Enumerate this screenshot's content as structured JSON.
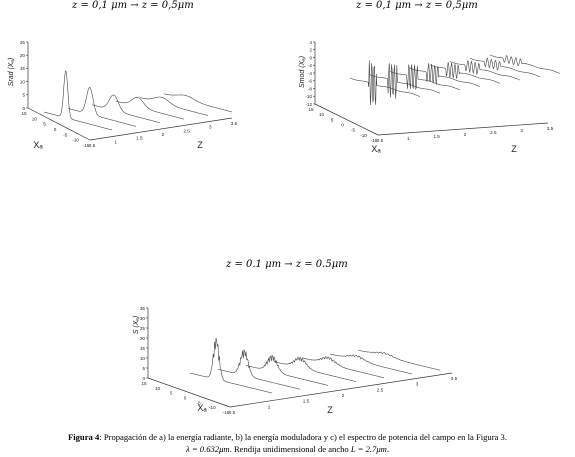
{
  "figures": [
    {
      "id": "a",
      "title": "z = 0,1 μm → z = 0,5μm",
      "ylabel": "Srad (Xₐ)",
      "xlabel": "Xₐ",
      "zlabel": "Z",
      "yticks": [
        "25",
        "20",
        "15",
        "10",
        "5",
        "0"
      ],
      "xticks": [
        "15",
        "10",
        "5",
        "0",
        "-5",
        "-10",
        "-15"
      ],
      "zticks": [
        "0.5",
        "1",
        "1.5",
        "2",
        "2.5",
        "3",
        "3.5"
      ]
    },
    {
      "id": "b",
      "title": "z = 0,1 μm → z = 0,5μm",
      "ylabel": "Smod (Xₐ)",
      "xlabel": "Xₐ",
      "zlabel": "Z",
      "yticks": [
        "4",
        "2",
        "0",
        "-2",
        "-4",
        "-6",
        "-8",
        "-10",
        "-12"
      ],
      "xticks": [
        "15",
        "10",
        "5",
        "0",
        "-5",
        "-10",
        "-15"
      ],
      "zticks": [
        "0.5",
        "1",
        "1.5",
        "2",
        "2.5",
        "3",
        "3.5"
      ]
    },
    {
      "id": "c",
      "title": "z = 0.1 μm → z = 0.5μm",
      "ylabel": "S (Xₐ)",
      "xlabel": "Xₐ",
      "zlabel": "Z",
      "yticks": [
        "35",
        "30",
        "25",
        "20",
        "15",
        "10",
        "5",
        "0"
      ],
      "xticks": [
        "15",
        "10",
        "5",
        "0",
        "-5",
        "-10",
        "-15"
      ],
      "zticks": [
        "0.5",
        "1",
        "1.5",
        "2",
        "2.5",
        "3",
        "3.5"
      ]
    }
  ],
  "caption": {
    "label": "Figura 4",
    "text": ": Propagación de a) la energía radiante, b) la energía moduladora y c) el espectro de potencia del campo en la Figura 3.",
    "line2_a": "λ = 0.632μm",
    "line2_b": ". Rendija unidimensional de ancho ",
    "line2_c": "L = 2.7μm",
    "line2_d": "."
  }
}
